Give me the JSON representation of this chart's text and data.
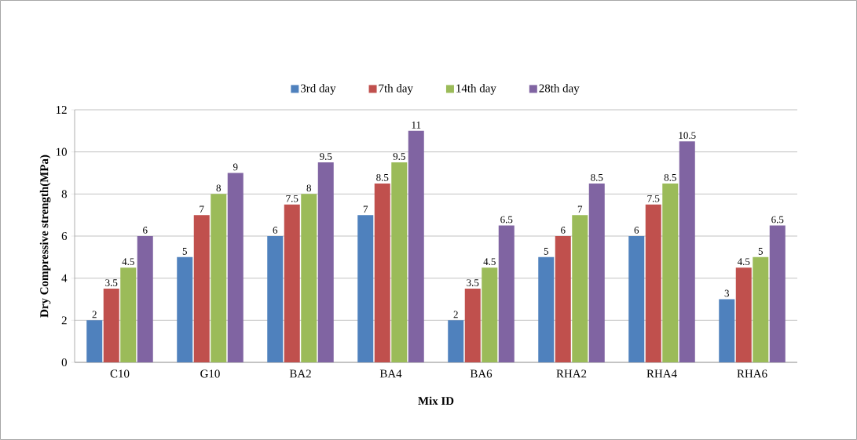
{
  "chart_data": {
    "type": "bar",
    "xlabel": "Mix ID",
    "ylabel": "Dry Compressive strength(MPa)",
    "categories": [
      "C10",
      "G10",
      "BA2",
      "BA4",
      "BA6",
      "RHA2",
      "RHA4",
      "RHA6"
    ],
    "series": [
      {
        "name": "3rd day",
        "color": "#4f81bd",
        "values": [
          2,
          5,
          6,
          7,
          2,
          5,
          6,
          3
        ],
        "value_labels": [
          "2",
          "5",
          "6",
          "7",
          "2",
          "5",
          "6",
          "3"
        ]
      },
      {
        "name": "7th day",
        "color": "#c0504d",
        "values": [
          3.5,
          7,
          7.5,
          8.5,
          3.5,
          6,
          7.5,
          4.5
        ],
        "value_labels": [
          "3.5",
          "7",
          "7.5",
          "8.5",
          "3.5",
          "6",
          "7.5",
          "4.5"
        ]
      },
      {
        "name": "14th day",
        "color": "#9bbb59",
        "values": [
          4.5,
          8,
          8,
          9.5,
          4.5,
          7,
          8.5,
          5
        ],
        "value_labels": [
          "4.5",
          "8",
          "8",
          "9.5",
          "4.5",
          "7",
          "8.5",
          "5"
        ]
      },
      {
        "name": "28th day",
        "color": "#8064a2",
        "values": [
          6,
          9,
          9.5,
          11,
          6.5,
          8.5,
          10.5,
          6.5
        ],
        "value_labels": [
          "6",
          "9",
          "9.5",
          "11",
          "6.5",
          "8.5",
          "10.5",
          "6.5"
        ]
      }
    ],
    "ylim": [
      0,
      12
    ],
    "yticks": [
      0,
      2,
      4,
      6,
      8,
      10,
      12
    ],
    "grid": "y",
    "legend": "top"
  }
}
